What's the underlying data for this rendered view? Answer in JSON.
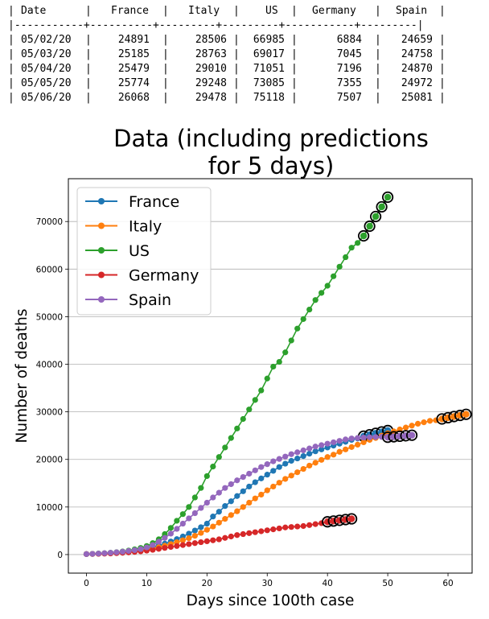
{
  "table": {
    "columns": [
      "Date",
      "France",
      "Italy",
      "US",
      "Germany",
      "Spain"
    ],
    "separator": "|-----------+----------+---------+---------+-----------+---------|",
    "rows": [
      [
        "05/02/20",
        "24891",
        "28506",
        "66985",
        "6884",
        "24659"
      ],
      [
        "05/03/20",
        "25185",
        "28763",
        "69017",
        "7045",
        "24758"
      ],
      [
        "05/04/20",
        "25479",
        "29010",
        "71051",
        "7196",
        "24870"
      ],
      [
        "05/05/20",
        "25774",
        "29248",
        "73085",
        "7355",
        "24972"
      ],
      [
        "05/06/20",
        "26068",
        "29478",
        "75118",
        "7507",
        "25081"
      ]
    ]
  },
  "chart_data": {
    "type": "line",
    "title": "Data (including predictions for 5 days)",
    "title_lines": [
      "Data (including predictions",
      "for 5 days)"
    ],
    "xlabel": "Days since 100th case",
    "ylabel": "Number of deaths",
    "xlim": [
      -3,
      64
    ],
    "ylim": [
      -3900,
      79000
    ],
    "xticks": [
      0,
      10,
      20,
      30,
      40,
      50,
      60
    ],
    "yticks": [
      0,
      10000,
      20000,
      30000,
      40000,
      50000,
      60000,
      70000
    ],
    "grid": "horizontal",
    "legend_position": "top-left",
    "prediction_marker": "black open circle around the last 5 points of each series",
    "series": [
      {
        "name": "France",
        "color": "#1f77b4",
        "x": [
          0,
          1,
          2,
          3,
          4,
          5,
          6,
          7,
          8,
          9,
          10,
          11,
          12,
          13,
          14,
          15,
          16,
          17,
          18,
          19,
          20,
          21,
          22,
          23,
          24,
          25,
          26,
          27,
          28,
          29,
          30,
          31,
          32,
          33,
          34,
          35,
          36,
          37,
          38,
          39,
          40,
          41,
          42,
          43,
          44,
          45,
          46,
          47,
          48,
          49,
          50
        ],
        "values": [
          100,
          150,
          210,
          280,
          360,
          450,
          560,
          680,
          830,
          1000,
          1250,
          1550,
          1900,
          2300,
          2750,
          3250,
          3800,
          4400,
          5050,
          5750,
          6500,
          8000,
          9000,
          10200,
          11200,
          12300,
          13300,
          14300,
          15200,
          16000,
          16800,
          17600,
          18400,
          19100,
          19700,
          20200,
          20700,
          21200,
          21700,
          22100,
          22500,
          22900,
          23300,
          23700,
          24100,
          24400,
          24891,
          25185,
          25479,
          25774,
          26068
        ]
      },
      {
        "name": "Italy",
        "color": "#ff7f0e",
        "x": [
          0,
          1,
          2,
          3,
          4,
          5,
          6,
          7,
          8,
          9,
          10,
          11,
          12,
          13,
          14,
          15,
          16,
          17,
          18,
          19,
          20,
          21,
          22,
          23,
          24,
          25,
          26,
          27,
          28,
          29,
          30,
          31,
          32,
          33,
          34,
          35,
          36,
          37,
          38,
          39,
          40,
          41,
          42,
          43,
          44,
          45,
          46,
          47,
          48,
          49,
          50,
          51,
          52,
          53,
          54,
          55,
          56,
          57,
          58,
          59,
          60,
          61,
          62,
          63
        ],
        "values": [
          100,
          140,
          190,
          250,
          320,
          400,
          480,
          570,
          670,
          800,
          1000,
          1250,
          1550,
          1850,
          2200,
          2600,
          3000,
          3450,
          3950,
          4550,
          5200,
          5900,
          6700,
          7500,
          8300,
          9100,
          10000,
          10900,
          11800,
          12600,
          13500,
          14300,
          15100,
          15900,
          16600,
          17300,
          18000,
          18700,
          19300,
          19900,
          20500,
          21000,
          21600,
          22100,
          22600,
          23100,
          23600,
          24100,
          24500,
          25000,
          25500,
          25900,
          26300,
          26700,
          27100,
          27500,
          27800,
          28100,
          28236,
          28506,
          28763,
          29010,
          29248,
          29478
        ]
      },
      {
        "name": "US",
        "color": "#2ca02c",
        "x": [
          0,
          1,
          2,
          3,
          4,
          5,
          6,
          7,
          8,
          9,
          10,
          11,
          12,
          13,
          14,
          15,
          16,
          17,
          18,
          19,
          20,
          21,
          22,
          23,
          24,
          25,
          26,
          27,
          28,
          29,
          30,
          31,
          32,
          33,
          34,
          35,
          36,
          37,
          38,
          39,
          40,
          41,
          42,
          43,
          44,
          45,
          46,
          47,
          48,
          49,
          50
        ],
        "values": [
          100,
          150,
          200,
          280,
          380,
          500,
          650,
          850,
          1100,
          1400,
          1800,
          2400,
          3200,
          4300,
          5600,
          7100,
          8500,
          10000,
          12000,
          14000,
          16500,
          18500,
          20500,
          22500,
          24500,
          26500,
          28500,
          30500,
          32500,
          34500,
          37000,
          39500,
          40500,
          42500,
          45000,
          47500,
          49500,
          51500,
          53500,
          55000,
          56500,
          58500,
          60500,
          62500,
          64500,
          65500,
          66985,
          69017,
          71051,
          73085,
          75118
        ]
      },
      {
        "name": "Germany",
        "color": "#d62728",
        "x": [
          0,
          1,
          2,
          3,
          4,
          5,
          6,
          7,
          8,
          9,
          10,
          11,
          12,
          13,
          14,
          15,
          16,
          17,
          18,
          19,
          20,
          21,
          22,
          23,
          24,
          25,
          26,
          27,
          28,
          29,
          30,
          31,
          32,
          33,
          34,
          35,
          36,
          37,
          38,
          39,
          40,
          41,
          42,
          43,
          44
        ],
        "values": [
          100,
          120,
          150,
          190,
          240,
          300,
          370,
          460,
          560,
          680,
          830,
          1000,
          1200,
          1400,
          1600,
          1800,
          2000,
          2200,
          2400,
          2600,
          2800,
          3000,
          3200,
          3500,
          3800,
          4100,
          4300,
          4500,
          4700,
          4900,
          5100,
          5300,
          5500,
          5700,
          5800,
          5900,
          6000,
          6200,
          6400,
          6600,
          6884,
          7045,
          7196,
          7355,
          7507
        ]
      },
      {
        "name": "Spain",
        "color": "#9467bd",
        "x": [
          0,
          1,
          2,
          3,
          4,
          5,
          6,
          7,
          8,
          9,
          10,
          11,
          12,
          13,
          14,
          15,
          16,
          17,
          18,
          19,
          20,
          21,
          22,
          23,
          24,
          25,
          26,
          27,
          28,
          29,
          30,
          31,
          32,
          33,
          34,
          35,
          36,
          37,
          38,
          39,
          40,
          41,
          42,
          43,
          44,
          45,
          46,
          47,
          48,
          49,
          50,
          51,
          52,
          53,
          54
        ],
        "values": [
          100,
          150,
          210,
          290,
          380,
          480,
          600,
          750,
          930,
          1150,
          1500,
          2000,
          2700,
          3500,
          4400,
          5400,
          6500,
          7600,
          8700,
          9800,
          10900,
          12000,
          13000,
          14000,
          14800,
          15600,
          16300,
          17000,
          17700,
          18400,
          19000,
          19600,
          20100,
          20600,
          21100,
          21500,
          21900,
          22300,
          22700,
          23000,
          23300,
          23600,
          23900,
          24200,
          24400,
          24500,
          24600,
          24650,
          24700,
          24730,
          24659,
          24758,
          24870,
          24972,
          25081
        ]
      }
    ]
  }
}
